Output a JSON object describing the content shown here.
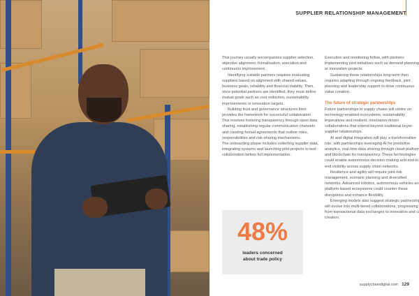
{
  "header": {
    "section": "SUPPLIER RELATIONSHIP MANAGEMENT",
    "accent": "#c9783c"
  },
  "column1": [
    "This journey usually encompasses supplier selection, objective alignment, formalisation, execution and continuous improvement.",
    "Identifying suitable partners requires evaluating suppliers based on alignment with shared values, business goals, reliability and financial stability. Then, once potential partners are identified, they must define mutual goals such as cost reduction, sustainability improvements or innovation targets.",
    "Building trust and governance structures then provides the framework for successful collaboration. This involves fostering transparency through open data sharing, establishing regular communication channels and creating formal agreements that outline roles, responsibilities and risk-sharing mechanisms.",
    "The onboarding phase includes collecting supplier data, integrating systems and launching pilot projects to test collaboration before full implementation."
  ],
  "stat": {
    "value": "48%",
    "label": "leaders concerned about trade policy",
    "color": "#ee7a45"
  },
  "column2": {
    "intro": [
      "Execution and monitoring follow, with partners implementing joint initiatives such as demand planning or innovation projects.",
      "Sustaining these relationships long-term then requires adapting through ongoing feedback, joint planning and leadership support to drive continuous value creation."
    ],
    "subheading": "The future of strategic partnerships",
    "body": [
      "Future partnerships in supply chains will centre on technology-enabled ecosystems, sustainability imperatives and resilient, innovation-driven collaborations that extend beyond traditional buyer-supplier relationships.",
      "AI and digital integration will play a transformative role, with partnerships leveraging AI for predictive analytics, real-time data sharing through cloud platforms and blockchain for transparency. These technologies could enable autonomous decision-making and end-to-end visibility across supply chain networks.",
      "Resilience and agility will require joint risk management, scenario planning and diversified networks. Advanced robotics, autonomous vehicles and platform-based ecosystems could counter these disruptions and enhance flexibility.",
      "Emerging models also suggest strategic partnerships will evolve into multi-tiered collaborations, progressing from transactional data exchanges to innovation and co-creation."
    ]
  },
  "footer": {
    "site": "supplychaindigital.com",
    "page": "129"
  }
}
